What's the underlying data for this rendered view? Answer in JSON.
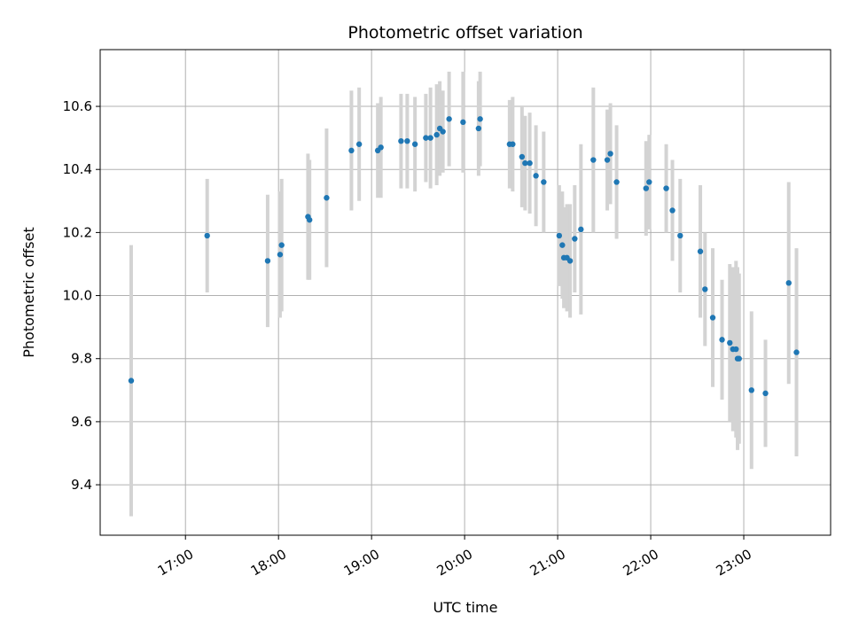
{
  "chart_data": {
    "type": "scatter",
    "title": "Photometric offset variation",
    "xlabel": "UTC time",
    "ylabel": "Photometric offset",
    "grid": true,
    "x_ticks": [
      "17:00",
      "18:00",
      "19:00",
      "20:00",
      "21:00",
      "22:00",
      "23:00"
    ],
    "y_ticks": [
      "9.4",
      "9.6",
      "9.8",
      "10.0",
      "10.2",
      "10.4",
      "10.6"
    ],
    "xlim": [
      "16:05",
      "23:56"
    ],
    "ylim": [
      9.24,
      10.78
    ],
    "colors": {
      "point": "#1f77b4",
      "errorbar": "#d3d3d3",
      "grid": "#b0b0b0"
    },
    "series": [
      {
        "x": [
          "16:25",
          "17:14",
          "17:53",
          "18:01",
          "18:02",
          "18:19",
          "18:20",
          "18:31",
          "18:47",
          "18:52",
          "19:04",
          "19:06",
          "19:19",
          "19:23",
          "19:28",
          "19:35",
          "19:38",
          "19:42",
          "19:44",
          "19:46",
          "19:50",
          "19:59",
          "20:09",
          "20:10",
          "20:29",
          "20:31",
          "20:37",
          "20:39",
          "20:42",
          "20:46",
          "20:51",
          "21:01",
          "21:03",
          "21:04",
          "21:06",
          "21:08",
          "21:11",
          "21:15",
          "21:23",
          "21:32",
          "21:34",
          "21:38",
          "21:57",
          "21:59",
          "22:10",
          "22:14",
          "22:19",
          "22:32",
          "22:35",
          "22:40",
          "22:46",
          "22:51",
          "22:53",
          "22:55",
          "22:56",
          "22:57",
          "23:05",
          "23:14",
          "23:29",
          "23:34"
        ],
        "y": [
          9.73,
          10.19,
          10.11,
          10.13,
          10.16,
          10.25,
          10.24,
          10.31,
          10.46,
          10.48,
          10.46,
          10.47,
          10.49,
          10.49,
          10.48,
          10.5,
          10.5,
          10.51,
          10.53,
          10.52,
          10.56,
          10.55,
          10.53,
          10.56,
          10.48,
          10.48,
          10.44,
          10.42,
          10.42,
          10.38,
          10.36,
          10.19,
          10.16,
          10.12,
          10.12,
          10.11,
          10.18,
          10.21,
          10.43,
          10.43,
          10.45,
          10.36,
          10.34,
          10.36,
          10.34,
          10.27,
          10.19,
          10.14,
          10.02,
          9.93,
          9.86,
          9.85,
          9.83,
          9.83,
          9.8,
          9.8,
          9.7,
          9.69,
          10.04,
          9.82
        ],
        "yerr": [
          0.43,
          0.18,
          0.21,
          0.2,
          0.21,
          0.2,
          0.19,
          0.22,
          0.19,
          0.18,
          0.15,
          0.16,
          0.15,
          0.15,
          0.15,
          0.14,
          0.16,
          0.16,
          0.15,
          0.13,
          0.15,
          0.16,
          0.15,
          0.15,
          0.14,
          0.15,
          0.16,
          0.15,
          0.16,
          0.16,
          0.16,
          0.16,
          0.17,
          0.16,
          0.17,
          0.18,
          0.17,
          0.27,
          0.23,
          0.16,
          0.16,
          0.18,
          0.15,
          0.15,
          0.14,
          0.16,
          0.18,
          0.21,
          0.18,
          0.22,
          0.19,
          0.25,
          0.26,
          0.28,
          0.29,
          0.27,
          0.25,
          0.17,
          0.32,
          0.33
        ]
      }
    ]
  }
}
